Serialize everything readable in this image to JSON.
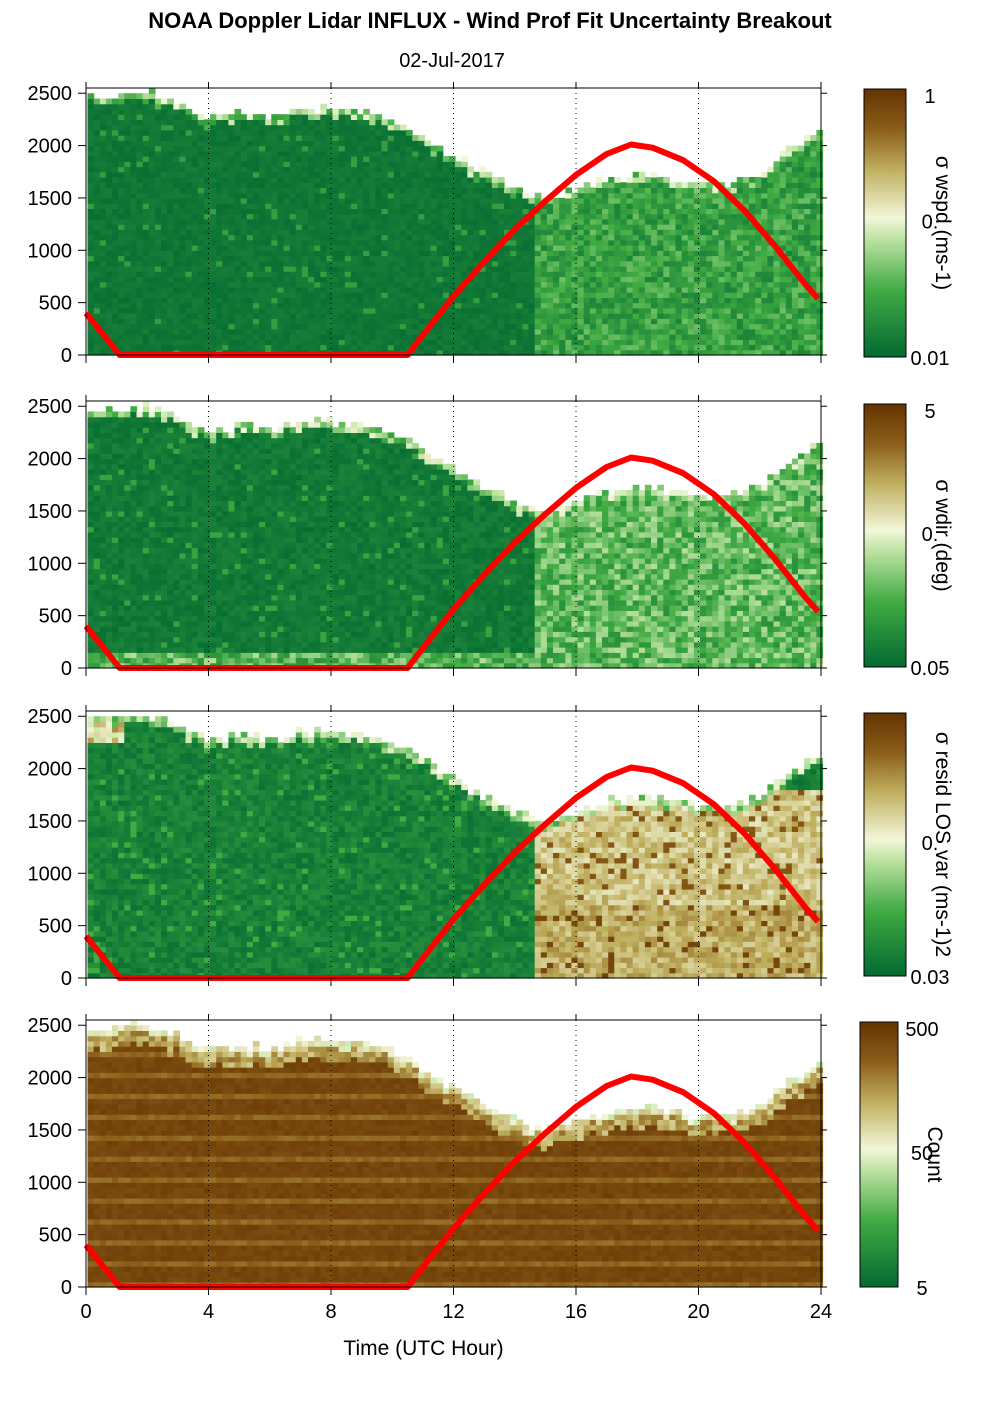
{
  "title": "NOAA Doppler Lidar INFLUX - Wind Prof Fit Uncertainty Breakout",
  "subtitle": "02-Jul-2017",
  "colors": {
    "dark_green": "#036A32",
    "mid_green": "#41AB43",
    "pale": "#F2F7D9",
    "tan": "#BFAE5E",
    "dark_brown": "#653401",
    "curve": "#FF0000"
  },
  "chart_data": [
    {
      "type": "heatmap",
      "name": "wspd",
      "xlabel": "",
      "ylabel": "",
      "xlim": [
        0,
        24
      ],
      "ylim": [
        0,
        2550
      ],
      "x_ticks": [
        0,
        4,
        8,
        12,
        16,
        20,
        24
      ],
      "y_ticks": [
        0,
        500,
        1000,
        1500,
        2000,
        2500
      ],
      "y_tick_labels": [
        "0",
        "500",
        "1000",
        "1500",
        "2000",
        "2500"
      ],
      "colorbar": {
        "label": "σ wspd (ms-1)",
        "tick_labels": [
          "1",
          "0.",
          "0.01"
        ],
        "scale": "log"
      },
      "pattern": "wspd",
      "coverage_top": [
        [
          0,
          2460
        ],
        [
          1,
          2450
        ],
        [
          2,
          2480
        ],
        [
          3,
          2390
        ],
        [
          4,
          2230
        ],
        [
          5,
          2300
        ],
        [
          6,
          2250
        ],
        [
          7,
          2330
        ],
        [
          8,
          2330
        ],
        [
          9,
          2300
        ],
        [
          10,
          2230
        ],
        [
          11,
          2070
        ],
        [
          12,
          1880
        ],
        [
          13,
          1710
        ],
        [
          14,
          1560
        ],
        [
          15,
          1480
        ],
        [
          16,
          1550
        ],
        [
          17,
          1660
        ],
        [
          18,
          1690
        ],
        [
          19,
          1670
        ],
        [
          20,
          1610
        ],
        [
          21,
          1610
        ],
        [
          22,
          1700
        ],
        [
          23,
          1940
        ],
        [
          23.9,
          2120
        ]
      ],
      "curve": [
        [
          0,
          400
        ],
        [
          1.1,
          0
        ],
        [
          10.5,
          0
        ],
        [
          11,
          190
        ],
        [
          12,
          560
        ],
        [
          13,
          890
        ],
        [
          14,
          1200
        ],
        [
          15,
          1470
        ],
        [
          16,
          1720
        ],
        [
          17,
          1920
        ],
        [
          17.8,
          2010
        ],
        [
          18.5,
          1980
        ],
        [
          19.5,
          1860
        ],
        [
          20.5,
          1660
        ],
        [
          21.5,
          1380
        ],
        [
          22.5,
          1040
        ],
        [
          23.5,
          670
        ],
        [
          23.9,
          540
        ]
      ]
    },
    {
      "type": "heatmap",
      "name": "wdir",
      "xlabel": "",
      "ylabel": "",
      "xlim": [
        0,
        24
      ],
      "ylim": [
        0,
        2550
      ],
      "x_ticks": [
        0,
        4,
        8,
        12,
        16,
        20,
        24
      ],
      "y_ticks": [
        0,
        500,
        1000,
        1500,
        2000,
        2500
      ],
      "y_tick_labels": [
        "0",
        "500",
        "1000",
        "1500",
        "2000",
        "2500"
      ],
      "colorbar": {
        "label": "σ wdir (deg)",
        "tick_labels": [
          "5",
          "0.",
          "0.05"
        ],
        "scale": "log"
      },
      "pattern": "wdir",
      "coverage_top": [
        [
          0,
          2460
        ],
        [
          1,
          2450
        ],
        [
          2,
          2480
        ],
        [
          3,
          2390
        ],
        [
          4,
          2230
        ],
        [
          5,
          2300
        ],
        [
          6,
          2250
        ],
        [
          7,
          2330
        ],
        [
          8,
          2330
        ],
        [
          9,
          2300
        ],
        [
          10,
          2230
        ],
        [
          11,
          2070
        ],
        [
          12,
          1880
        ],
        [
          13,
          1710
        ],
        [
          14,
          1560
        ],
        [
          15,
          1480
        ],
        [
          16,
          1550
        ],
        [
          17,
          1660
        ],
        [
          18,
          1690
        ],
        [
          19,
          1670
        ],
        [
          20,
          1610
        ],
        [
          21,
          1610
        ],
        [
          22,
          1700
        ],
        [
          23,
          1940
        ],
        [
          23.9,
          2120
        ]
      ],
      "curve": [
        [
          0,
          400
        ],
        [
          1.1,
          0
        ],
        [
          10.5,
          0
        ],
        [
          11,
          190
        ],
        [
          12,
          560
        ],
        [
          13,
          890
        ],
        [
          14,
          1200
        ],
        [
          15,
          1470
        ],
        [
          16,
          1720
        ],
        [
          17,
          1920
        ],
        [
          17.8,
          2010
        ],
        [
          18.5,
          1980
        ],
        [
          19.5,
          1860
        ],
        [
          20.5,
          1660
        ],
        [
          21.5,
          1380
        ],
        [
          22.5,
          1040
        ],
        [
          23.5,
          670
        ],
        [
          23.9,
          540
        ]
      ]
    },
    {
      "type": "heatmap",
      "name": "resid",
      "xlabel": "",
      "ylabel": "",
      "xlim": [
        0,
        24
      ],
      "ylim": [
        0,
        2550
      ],
      "x_ticks": [
        0,
        4,
        8,
        12,
        16,
        20,
        24
      ],
      "y_ticks": [
        0,
        500,
        1000,
        1500,
        2000,
        2500
      ],
      "y_tick_labels": [
        "0",
        "500",
        "1000",
        "1500",
        "2000",
        "2500"
      ],
      "colorbar": {
        "label": "σ resid LOS var (ms-1)2",
        "tick_labels": [
          "",
          "0.",
          "0.03"
        ],
        "scale": "log"
      },
      "pattern": "resid",
      "coverage_top": [
        [
          0,
          2460
        ],
        [
          1,
          2450
        ],
        [
          2,
          2480
        ],
        [
          3,
          2390
        ],
        [
          4,
          2230
        ],
        [
          5,
          2300
        ],
        [
          6,
          2250
        ],
        [
          7,
          2330
        ],
        [
          8,
          2330
        ],
        [
          9,
          2300
        ],
        [
          10,
          2230
        ],
        [
          11,
          2070
        ],
        [
          12,
          1880
        ],
        [
          13,
          1710
        ],
        [
          14,
          1560
        ],
        [
          15,
          1480
        ],
        [
          16,
          1550
        ],
        [
          17,
          1660
        ],
        [
          18,
          1690
        ],
        [
          19,
          1670
        ],
        [
          20,
          1610
        ],
        [
          21,
          1610
        ],
        [
          22,
          1700
        ],
        [
          23,
          1940
        ],
        [
          23.9,
          2120
        ]
      ],
      "curve": [
        [
          0,
          400
        ],
        [
          1.1,
          0
        ],
        [
          10.5,
          0
        ],
        [
          11,
          190
        ],
        [
          12,
          560
        ],
        [
          13,
          890
        ],
        [
          14,
          1200
        ],
        [
          15,
          1470
        ],
        [
          16,
          1720
        ],
        [
          17,
          1920
        ],
        [
          17.8,
          2010
        ],
        [
          18.5,
          1980
        ],
        [
          19.5,
          1860
        ],
        [
          20.5,
          1660
        ],
        [
          21.5,
          1380
        ],
        [
          22.5,
          1040
        ],
        [
          23.5,
          670
        ],
        [
          23.9,
          540
        ]
      ]
    },
    {
      "type": "heatmap",
      "name": "count",
      "xlabel": "Time (UTC Hour)",
      "ylabel": "",
      "xlim": [
        0,
        24
      ],
      "ylim": [
        0,
        2550
      ],
      "x_ticks": [
        0,
        4,
        8,
        12,
        16,
        20,
        24
      ],
      "x_tick_labels": [
        "0",
        "4",
        "8",
        "12",
        "16",
        "20",
        "24"
      ],
      "y_ticks": [
        0,
        500,
        1000,
        1500,
        2000,
        2500
      ],
      "y_tick_labels": [
        "0",
        "500",
        "1000",
        "1500",
        "2000",
        "2500"
      ],
      "colorbar": {
        "label": "Count",
        "tick_labels": [
          "500",
          "50",
          "5"
        ],
        "scale": "log"
      },
      "pattern": "count",
      "coverage_top": [
        [
          0,
          2460
        ],
        [
          1,
          2450
        ],
        [
          2,
          2480
        ],
        [
          3,
          2390
        ],
        [
          4,
          2230
        ],
        [
          5,
          2300
        ],
        [
          6,
          2250
        ],
        [
          7,
          2330
        ],
        [
          8,
          2330
        ],
        [
          9,
          2300
        ],
        [
          10,
          2230
        ],
        [
          11,
          2070
        ],
        [
          12,
          1880
        ],
        [
          13,
          1710
        ],
        [
          14,
          1560
        ],
        [
          15,
          1480
        ],
        [
          16,
          1550
        ],
        [
          17,
          1660
        ],
        [
          18,
          1690
        ],
        [
          19,
          1670
        ],
        [
          20,
          1610
        ],
        [
          21,
          1610
        ],
        [
          22,
          1700
        ],
        [
          23,
          1940
        ],
        [
          23.9,
          2120
        ]
      ],
      "curve": [
        [
          0,
          400
        ],
        [
          1.1,
          0
        ],
        [
          10.5,
          0
        ],
        [
          11,
          190
        ],
        [
          12,
          560
        ],
        [
          13,
          890
        ],
        [
          14,
          1200
        ],
        [
          15,
          1470
        ],
        [
          16,
          1720
        ],
        [
          17,
          1920
        ],
        [
          17.8,
          2010
        ],
        [
          18.5,
          1980
        ],
        [
          19.5,
          1860
        ],
        [
          20.5,
          1660
        ],
        [
          21.5,
          1380
        ],
        [
          22.5,
          1040
        ],
        [
          23.5,
          670
        ],
        [
          23.9,
          540
        ]
      ]
    }
  ]
}
